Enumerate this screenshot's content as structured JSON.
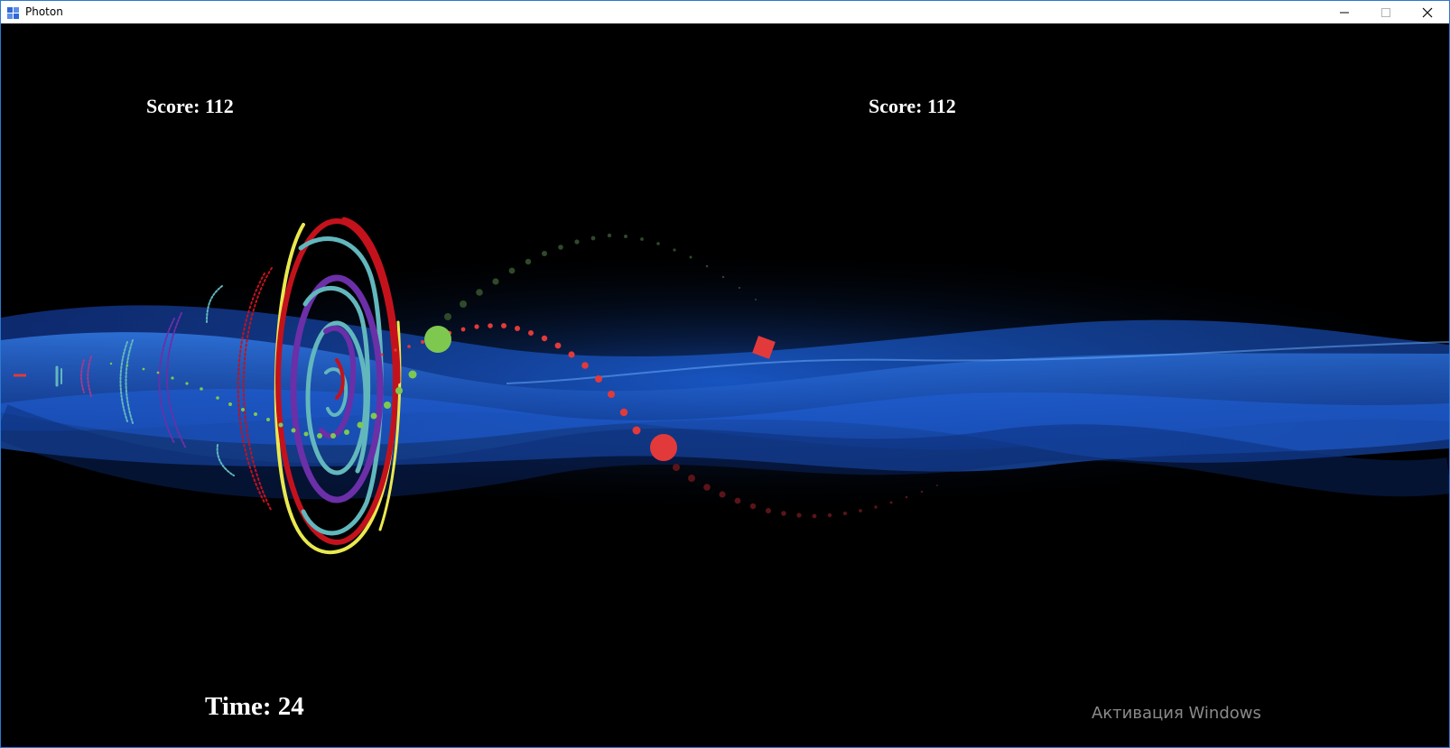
{
  "window": {
    "title": "Photon"
  },
  "hud": {
    "score_left": "Score: 112",
    "score_right": "Score: 112",
    "time": "Time: 24"
  },
  "watermark": "Активация Windows",
  "colors": {
    "background": "#000000",
    "wave": "#1a5fe0",
    "player_green": "#7ec850",
    "player_red": "#e23a3a",
    "ring_yellow": "#e9e94f",
    "ring_red": "#c4121d",
    "ring_cyan": "#62b7bd",
    "ring_purple": "#6b2fa8"
  },
  "icons": {
    "app": "photon-app-icon",
    "minimize": "minimize-icon",
    "maximize": "maximize-icon",
    "close": "close-icon"
  }
}
